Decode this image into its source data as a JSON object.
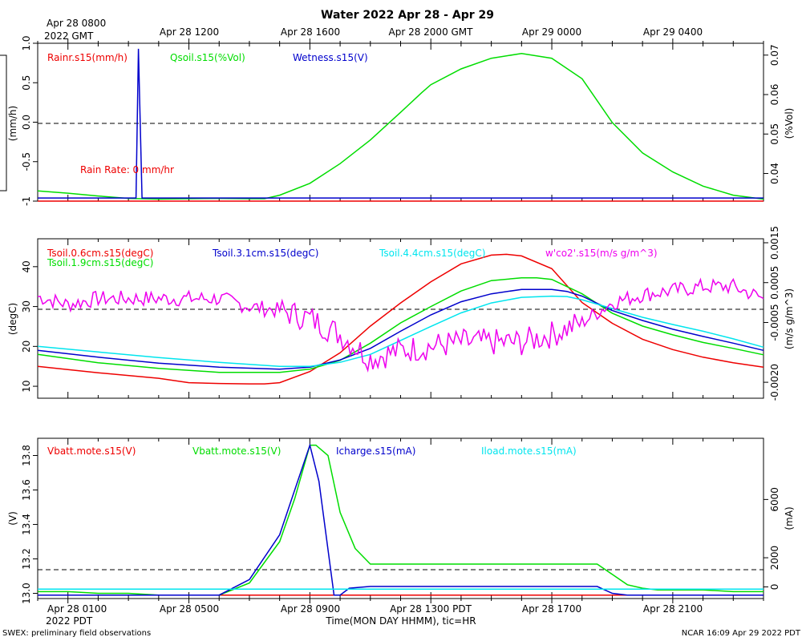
{
  "title": "Water 2022 Apr 28 - Apr 29",
  "top_axis": {
    "first_label": [
      "Apr 28 0800",
      "2022 GMT"
    ],
    "labels": [
      "Apr 28 1200",
      "Apr 28 1600",
      "Apr 28 2000 GMT",
      "Apr 29 0000",
      "Apr 29 0400"
    ]
  },
  "bottom_axis": {
    "first_label": [
      "Apr 28 0100",
      "2022 PDT"
    ],
    "labels": [
      "Apr 28 0500",
      "Apr 28 0900",
      "Apr 28 1300 PDT",
      "Apr 28 1700",
      "Apr 28 2100"
    ],
    "xlabel": "Time(MON DAY HHMM), tic=HR"
  },
  "footer": {
    "left": "SWEX: preliminary field observations",
    "right": "NCAR 16:09 Apr 29 2022 PDT"
  },
  "colors": {
    "red": "#ee0000",
    "green": "#00dd00",
    "blue": "#0000cc",
    "cyan": "#00e5ee",
    "magenta": "#ee00ee",
    "black": "#000000"
  },
  "chart_data": [
    {
      "type": "line",
      "x_unit": "hours since Apr 28 0000 PDT",
      "xlim": [
        0,
        24
      ],
      "ylabel_left": "(mm/h)",
      "ylabel_right": "(%Vol)",
      "ylim_left": [
        -1.0,
        1.0
      ],
      "ylim_right": [
        0.033,
        0.073
      ],
      "left_ticks": [
        -1.0,
        -0.5,
        0.0,
        0.5,
        1.0
      ],
      "left_tick_labels": [
        "-1",
        "-0.5",
        "0.0",
        "0.5",
        "1.0"
      ],
      "right_ticks": [
        0.04,
        0.05,
        0.06,
        0.07
      ],
      "right_tick_labels": [
        "0.04",
        "0.05",
        "0.06",
        "0.07"
      ],
      "ref_line": 0.0,
      "annotation": "Rain Rate: 0 mm/hr",
      "legend": [
        "Rainr.s15(mm/h)",
        "Qsoil.s15(%Vol)",
        "Wetness.s15(V)"
      ],
      "series": [
        {
          "name": "Rainr.s15(mm/h)",
          "color": "red",
          "axis": "left",
          "x": [
            0,
            24
          ],
          "y": [
            -1.0,
            -1.0
          ]
        },
        {
          "name": "Qsoil.s15(%Vol)",
          "color": "green",
          "axis": "right",
          "x": [
            0,
            1,
            2,
            3,
            4,
            5,
            6,
            7,
            7.5,
            8,
            9,
            10,
            11,
            12,
            12.7,
            13,
            14,
            15,
            16,
            17,
            18,
            19,
            20,
            21,
            22,
            23,
            24
          ],
          "y": [
            0.0356,
            0.035,
            0.0343,
            0.0337,
            0.0335,
            0.0336,
            0.0337,
            0.0336,
            0.0336,
            0.0345,
            0.0375,
            0.0425,
            0.0485,
            0.0555,
            0.0605,
            0.0625,
            0.0665,
            0.0692,
            0.0704,
            0.0692,
            0.064,
            0.0529,
            0.0452,
            0.0404,
            0.0368,
            0.0345,
            0.0335
          ]
        },
        {
          "name": "Wetness.s15(V)",
          "color": "blue",
          "axis": "left",
          "x": [
            0,
            3.25,
            3.33,
            3.45,
            24
          ],
          "y": [
            -0.96,
            -0.96,
            0.93,
            -0.96,
            -0.96
          ]
        }
      ]
    },
    {
      "type": "line",
      "x_unit": "hours since Apr 28 0000 PDT",
      "xlim": [
        0,
        24
      ],
      "ylabel_left": "(degC)",
      "ylabel_right": "(m/s g/m^3)",
      "ylim_left": [
        7,
        47
      ],
      "ylim_right": [
        -0.0024,
        0.0016
      ],
      "left_ticks": [
        10,
        20,
        30,
        40
      ],
      "left_tick_labels": [
        "10",
        "20",
        "30",
        "40"
      ],
      "right_ticks": [
        -0.002,
        -0.0005,
        0.0005,
        0.0015
      ],
      "right_tick_labels": [
        "-0.0020",
        "-0.0005",
        "0.0005",
        "0.0015"
      ],
      "ref_line": 30,
      "legend": [
        "Tsoil.0.6cm.s15(degC)",
        "Tsoil.1.9cm.s15(degC)",
        "Tsoil.3.1cm.s15(degC)",
        "Tsoil.4.4cm.s15(degC)",
        "w'co2'.s15(m/s g/m^3)"
      ],
      "series": [
        {
          "name": "Tsoil.0.6cm.s15(degC)",
          "color": "red",
          "axis": "left",
          "x": [
            0,
            2,
            4,
            5,
            6,
            7,
            7.5,
            8,
            9,
            10,
            11,
            12,
            13,
            14,
            15,
            15.5,
            16,
            17,
            18,
            19,
            20,
            21,
            22,
            23,
            24
          ],
          "y": [
            15,
            13.4,
            12.0,
            10.9,
            10.7,
            10.6,
            10.6,
            10.9,
            13.7,
            18.4,
            25.1,
            30.9,
            36.2,
            40.7,
            42.9,
            43.1,
            42.7,
            39.5,
            31.0,
            25.8,
            21.8,
            19.2,
            17.3,
            15.9,
            14.8
          ]
        },
        {
          "name": "Tsoil.1.9cm.s15(degC)",
          "color": "green",
          "axis": "left",
          "x": [
            0,
            2,
            4,
            6,
            8,
            9,
            10,
            11,
            12,
            13,
            14,
            15,
            16,
            16.5,
            17,
            18,
            19,
            20,
            21,
            22,
            23,
            24
          ],
          "y": [
            18,
            15.9,
            14.5,
            13.5,
            13.5,
            14.3,
            16.5,
            20.8,
            25.9,
            30.0,
            33.9,
            36.5,
            37.2,
            37.2,
            36.8,
            33.2,
            28.3,
            25.1,
            22.9,
            21.0,
            19.5,
            17.9
          ]
        },
        {
          "name": "Tsoil.3.1cm.s15(degC)",
          "color": "blue",
          "axis": "left",
          "x": [
            0,
            2,
            4,
            6,
            8,
            9,
            10,
            11,
            12,
            13,
            14,
            15,
            16,
            17,
            17.5,
            18,
            19,
            20,
            21,
            22,
            23,
            24
          ],
          "y": [
            19,
            17.3,
            15.8,
            14.8,
            14.3,
            14.8,
            16.6,
            19.5,
            23.8,
            27.9,
            31.2,
            33.2,
            34.3,
            34.3,
            33.8,
            32.6,
            29.0,
            26.5,
            24.3,
            22.5,
            20.8,
            19.0
          ]
        },
        {
          "name": "Tsoil.4.4cm.s15(degC)",
          "color": "cyan",
          "axis": "left",
          "x": [
            0,
            2,
            4,
            6,
            8,
            9,
            10,
            11,
            12,
            13,
            14,
            15,
            16,
            17,
            17.5,
            18,
            19,
            20,
            21,
            22,
            23,
            24
          ],
          "y": [
            20,
            18.6,
            17.2,
            16.0,
            15.0,
            15.0,
            16.0,
            18.0,
            21.5,
            25.0,
            28.4,
            30.9,
            32.3,
            32.6,
            32.5,
            31.7,
            29.5,
            27.3,
            25.5,
            23.8,
            21.9,
            19.8
          ]
        },
        {
          "name": "w'co2'.s15(m/s g/m^3)",
          "color": "magenta",
          "axis": "right",
          "x": [
            0,
            1,
            2,
            3,
            4,
            5,
            6,
            7,
            8,
            9,
            10,
            11,
            12,
            13,
            14,
            15,
            16,
            17,
            18,
            19,
            20,
            21,
            22,
            23,
            24
          ],
          "y": [
            0.00015,
            -5e-05,
            0.0001,
            0.0001,
            0.0001,
            0.0001,
            0.0001,
            -0.0001,
            -0.0002,
            -0.0004,
            -0.0008,
            -0.0014,
            -0.0012,
            -0.0011,
            -0.001,
            -0.001,
            -0.001,
            -0.0008,
            -0.0005,
            0.0,
            0.0002,
            0.0003,
            0.0004,
            0.0004,
            0.0001
          ]
        }
      ]
    },
    {
      "type": "line",
      "x_unit": "hours since Apr 28 0000 PDT",
      "xlim": [
        0,
        24
      ],
      "ylabel_left": "(V)",
      "ylabel_right": "(mA)",
      "ylim_left": [
        12.97,
        13.9
      ],
      "ylim_right": [
        -800,
        10200
      ],
      "left_ticks": [
        13.0,
        13.2,
        13.4,
        13.6,
        13.8
      ],
      "left_tick_labels": [
        "13.0",
        "13.2",
        "13.4",
        "13.6",
        "13.8"
      ],
      "right_ticks": [
        0,
        2000,
        6000
      ],
      "right_tick_labels": [
        "0",
        "2000",
        "6000"
      ],
      "ref_line_right": 0,
      "legend": [
        "Vbatt.mote.s15(V)",
        "Vbatt.mote.s15(V)",
        "Icharge.s15(mA)",
        "Iload.mote.s15(mA)"
      ],
      "series": [
        {
          "name": "Vbatt.mote.s15(V)",
          "color": "red",
          "axis": "left",
          "x": [
            0,
            24
          ],
          "y": [
            12.99,
            12.99
          ]
        },
        {
          "name": "Vbatt.mote.s15(V)",
          "color": "green",
          "axis": "left",
          "x": [
            0,
            1,
            2,
            3,
            4,
            5,
            6,
            7,
            8,
            8.5,
            9,
            9.2,
            9.6,
            10,
            10.5,
            11,
            12,
            13,
            14,
            15,
            16,
            17,
            18,
            18.5,
            19,
            19.5,
            20,
            20.5,
            21,
            22,
            23,
            24
          ],
          "y": [
            13.01,
            13.01,
            13.0,
            13.0,
            12.99,
            12.99,
            12.99,
            13.06,
            13.3,
            13.55,
            13.86,
            13.86,
            13.8,
            13.47,
            13.26,
            13.17,
            13.17,
            13.17,
            13.17,
            13.17,
            13.17,
            13.17,
            13.17,
            13.17,
            13.11,
            13.05,
            13.03,
            13.02,
            13.02,
            13.02,
            13.01,
            13.01
          ]
        },
        {
          "name": "Icharge.s15(mA)",
          "color": "blue",
          "axis": "left",
          "x": [
            0,
            1,
            2,
            3,
            4,
            5,
            6,
            7,
            8,
            8.5,
            9,
            9.3,
            9.8,
            10,
            10.3,
            11,
            12,
            13,
            14,
            15,
            16,
            17,
            18,
            18.5,
            19,
            19.5,
            20,
            21,
            22,
            23,
            24
          ],
          "y": [
            12.99,
            12.99,
            12.99,
            12.99,
            12.99,
            12.99,
            12.99,
            13.08,
            13.34,
            13.6,
            13.86,
            13.65,
            12.99,
            12.99,
            13.03,
            13.04,
            13.04,
            13.04,
            13.04,
            13.04,
            13.04,
            13.04,
            13.04,
            13.04,
            13.0,
            12.99,
            12.99,
            12.99,
            12.99,
            12.99,
            12.99
          ]
        },
        {
          "name": "Iload.mote.s15(mA)",
          "color": "cyan",
          "axis": "right",
          "x": [
            0,
            24
          ],
          "y": [
            -150,
            -150
          ]
        }
      ]
    }
  ]
}
